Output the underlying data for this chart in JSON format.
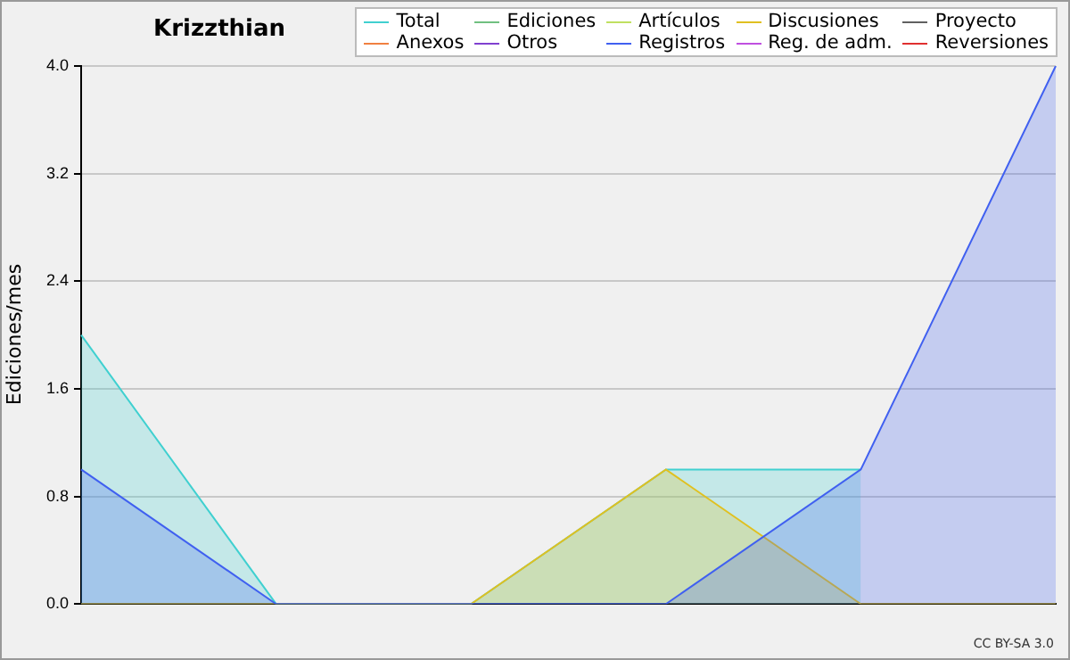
{
  "chart_data": {
    "type": "area",
    "title": "Krizzthian",
    "ylabel": "Ediciones/mes",
    "categories": [
      null,
      null,
      null,
      null,
      null,
      null
    ],
    "series": [
      {
        "name": "Total",
        "color": "#40d0d0",
        "values": [
          2,
          0,
          0,
          1,
          1,
          null
        ]
      },
      {
        "name": "Ediciones",
        "color": "#70c080",
        "values": [
          null,
          null,
          null,
          null,
          null,
          null
        ]
      },
      {
        "name": "Artículos",
        "color": "#c0e060",
        "values": [
          null,
          null,
          null,
          null,
          null,
          null
        ]
      },
      {
        "name": "Discusiones",
        "color": "#e0c020",
        "values": [
          0,
          0,
          0,
          1,
          0,
          0
        ]
      },
      {
        "name": "Proyecto",
        "color": "#606060",
        "values": [
          null,
          null,
          null,
          null,
          null,
          null
        ]
      },
      {
        "name": "Anexos",
        "color": "#f08040",
        "values": [
          null,
          null,
          null,
          null,
          null,
          null
        ]
      },
      {
        "name": "Otros",
        "color": "#8040d0",
        "values": [
          null,
          null,
          null,
          null,
          null,
          null
        ]
      },
      {
        "name": "Registros",
        "color": "#4060f0",
        "values": [
          1,
          0,
          0,
          0,
          1,
          4
        ]
      },
      {
        "name": "Reg. de adm.",
        "color": "#c050e0",
        "values": [
          null,
          null,
          null,
          null,
          null,
          null
        ]
      },
      {
        "name": "Reversiones",
        "color": "#e03030",
        "values": [
          null,
          null,
          null,
          null,
          null,
          null
        ]
      }
    ],
    "ylim": [
      0,
      4
    ],
    "yticks": [
      {
        "value": 0,
        "label": "0.0"
      },
      {
        "value": 0.8,
        "label": "0.8"
      },
      {
        "value": 1.6,
        "label": "1.6"
      },
      {
        "value": 2.4,
        "label": "2.4"
      },
      {
        "value": 3.2,
        "label": "3.2"
      },
      {
        "value": 4,
        "label": "4.0"
      }
    ],
    "grid": "y",
    "legend": "top right",
    "annotations": [
      "CC BY-SA 3.0"
    ]
  }
}
